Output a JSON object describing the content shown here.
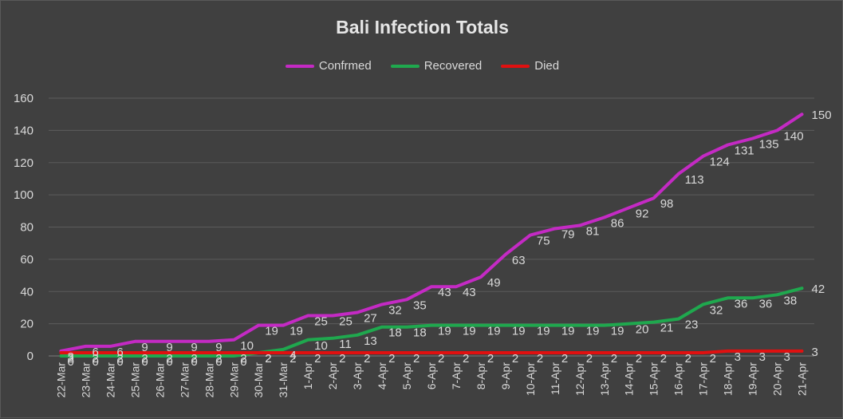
{
  "chart_data": {
    "type": "line",
    "title": "Bali Infection Totals",
    "xlabel": "",
    "ylabel": "",
    "ylim": [
      0,
      160
    ],
    "yticks": [
      0,
      20,
      40,
      60,
      80,
      100,
      120,
      140,
      160
    ],
    "grid": true,
    "legend_position": "top",
    "categories": [
      "22-Mar",
      "23-Mar",
      "24-Mar",
      "25-Mar",
      "26-Mar",
      "27-Mar",
      "28-Mar",
      "29-Mar",
      "30-Mar",
      "31-Mar",
      "1-Apr",
      "2-Apr",
      "3-Apr",
      "4-Apr",
      "5-Apr",
      "6-Apr",
      "7-Apr",
      "8-Apr",
      "9-Apr",
      "10-Apr",
      "11-Apr",
      "12-Apr",
      "13-Apr",
      "14-Apr",
      "15-Apr",
      "16-Apr",
      "17-Apr",
      "18-Apr",
      "19-Apr",
      "20-Apr",
      "21-Apr"
    ],
    "series": [
      {
        "name": "Confrmed",
        "color": "#c42ac4",
        "values": [
          3,
          6,
          6,
          9,
          9,
          9,
          9,
          10,
          19,
          19,
          25,
          25,
          27,
          32,
          35,
          43,
          43,
          49,
          63,
          75,
          79,
          81,
          86,
          92,
          98,
          113,
          124,
          131,
          135,
          140,
          150
        ]
      },
      {
        "name": "Recovered",
        "color": "#1fa84e",
        "values": [
          0,
          0,
          0,
          0,
          0,
          0,
          0,
          0,
          2,
          4,
          10,
          11,
          13,
          18,
          18,
          19,
          19,
          19,
          19,
          19,
          19,
          19,
          19,
          20,
          21,
          23,
          32,
          36,
          36,
          38,
          42
        ]
      },
      {
        "name": "Died",
        "color": "#e01010",
        "values": [
          2,
          2,
          2,
          2,
          2,
          2,
          2,
          2,
          2,
          2,
          2,
          2,
          2,
          2,
          2,
          2,
          2,
          2,
          2,
          2,
          2,
          2,
          2,
          2,
          2,
          2,
          2,
          3,
          3,
          3,
          3
        ]
      }
    ]
  }
}
